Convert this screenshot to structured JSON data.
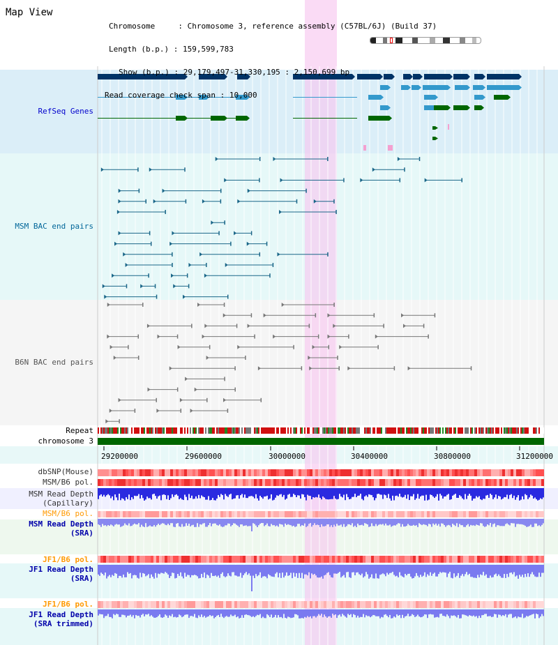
{
  "view_title": "Map View",
  "header": {
    "chromosome_key": "Chromosome",
    "chromosome_value": "Chromosome 3, reference assembly (C57BL/6J) (Build 37)",
    "length_key": "Length (b.p.)",
    "length_value": "159,599,783",
    "show_key": "Show (b.p.)",
    "show_value": "29,179,497-31,330,195 : 2,150,699 bp",
    "coverage_key": "Read coverage check span",
    "coverage_value": "10,000"
  },
  "tracks": {
    "refseq": "RefSeq Genes",
    "msm_bac": "MSM BAC end pairs",
    "b6n_bac": "B6N BAC end pairs",
    "repeat": "Repeat",
    "chromosome": "chromosome 3",
    "dbsnp": "dbSNP(Mouse)",
    "msm_b6_pol_1": "MSM/B6 pol.",
    "msm_depth_cap_1": "MSM Read Depth",
    "msm_depth_cap_2": "(Capillary)",
    "msm_b6_pol_2": "MSM/B6 pol.",
    "msm_depth_sra_1": "MSM Read Depth",
    "msm_depth_sra_2": "(SRA)",
    "jf1_pol_1": "JF1/B6 pol.",
    "jf1_depth_sra_1": "JF1 Read Depth",
    "jf1_depth_sra_2": "(SRA)",
    "jf1_pol_2": "JF1/B6 pol.",
    "jf1_depth_trim_1": "JF1 Read Depth",
    "jf1_depth_trim_2": "(SRA trimmed)"
  },
  "axis_ticks": [
    "29200000",
    "29600000",
    "30000000",
    "30400000",
    "30800000",
    "31200000"
  ],
  "colors": {
    "refseq_label": "#0000cc",
    "bac_label": "#006699",
    "pol_label": "#ff9900",
    "depth_label": "#0000aa",
    "gene_dark": "#003366",
    "gene_mid": "#3399cc",
    "gene_green": "#006600",
    "highlight": "#f8c8f0"
  }
}
